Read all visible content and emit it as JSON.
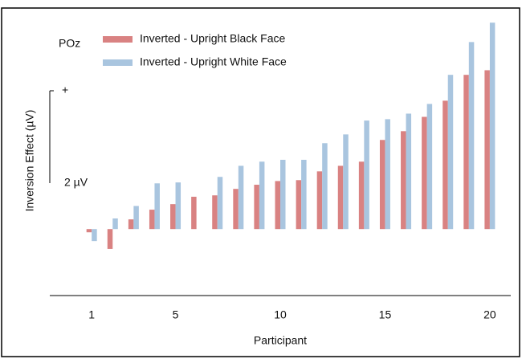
{
  "chart_data": {
    "type": "bar",
    "annotation": "POz",
    "y_label": "Inversion Effect (µV)",
    "x_label": "Participant",
    "x": [
      1,
      2,
      3,
      4,
      5,
      6,
      7,
      8,
      9,
      10,
      11,
      12,
      13,
      14,
      15,
      16,
      17,
      18,
      19,
      20
    ],
    "xlim": [
      -1,
      21
    ],
    "xticks": [
      1,
      5,
      10,
      15,
      20
    ],
    "ylim": [
      -1.44,
      4.7
    ],
    "scale_bar": {
      "value": 2,
      "label": "2 µV",
      "sign": "+"
    },
    "legend": "top-left",
    "series": [
      {
        "name": "Inverted - Upright Black Face",
        "color": "#d98282",
        "values": [
          -0.07,
          -0.43,
          0.21,
          0.42,
          0.54,
          0.7,
          0.73,
          0.87,
          0.96,
          1.04,
          1.06,
          1.25,
          1.37,
          1.46,
          1.93,
          2.12,
          2.43,
          2.78,
          3.34,
          3.44
        ]
      },
      {
        "name": "Inverted - Upright White Face",
        "color": "#a9c5df",
        "values": [
          -0.26,
          0.23,
          0.5,
          0.99,
          1.01,
          0,
          1.13,
          1.37,
          1.46,
          1.5,
          1.5,
          1.86,
          2.05,
          2.35,
          2.38,
          2.5,
          2.71,
          3.34,
          4.05,
          4.47
        ]
      }
    ]
  }
}
